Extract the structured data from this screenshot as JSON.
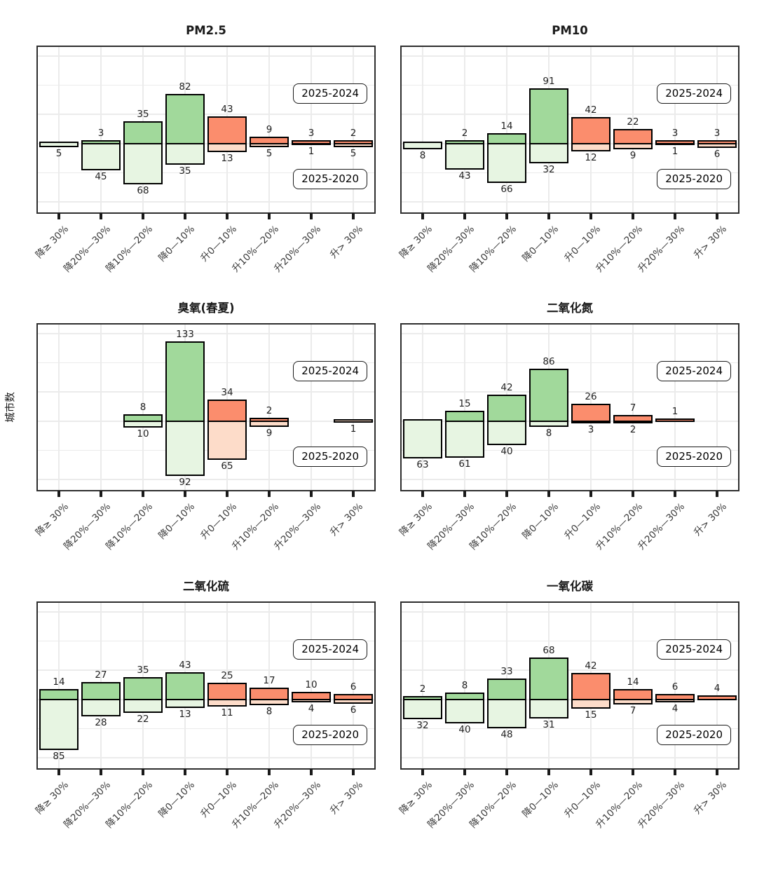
{
  "figure": {
    "ylabel": "城市数"
  },
  "chart_data": {
    "type": "bar",
    "subtype": "diverging-paired-bars",
    "layout": "2 columns x 3 rows of panels, shared category x-axis, values above zero line = first series, values below zero line = second series",
    "categories": [
      "降≥ 30%",
      "降20%—30%",
      "降10%—20%",
      "降0—10%",
      "升0—10%",
      "升10%—20%",
      "升20%—30%",
      "升> 30%"
    ],
    "series_names": [
      "2025-2024",
      "2025-2020"
    ],
    "legend_labels": [
      "2025-2024",
      "2025-2020"
    ],
    "legend_position": "right-inside",
    "ylabel": "城市数",
    "ylim": [
      -120,
      168
    ],
    "grid": true,
    "grid_step": 50,
    "panels": [
      {
        "title": "PM2.5",
        "upper": [
          0,
          3,
          35,
          82,
          43,
          9,
          3,
          2
        ],
        "lower": [
          5,
          45,
          68,
          35,
          13,
          5,
          1,
          5
        ]
      },
      {
        "title": "PM10",
        "upper": [
          0,
          2,
          14,
          91,
          42,
          22,
          3,
          3
        ],
        "lower": [
          8,
          43,
          66,
          32,
          12,
          9,
          1,
          6
        ]
      },
      {
        "title": "臭氧(春夏)",
        "upper": [
          0,
          0,
          8,
          133,
          34,
          2,
          0,
          0
        ],
        "lower": [
          0,
          0,
          10,
          92,
          65,
          9,
          0,
          1
        ]
      },
      {
        "title": "二氧化氮",
        "upper": [
          0,
          15,
          42,
          86,
          26,
          7,
          1,
          0
        ],
        "lower": [
          63,
          61,
          40,
          8,
          3,
          2,
          0,
          0
        ]
      },
      {
        "title": "二氧化硫",
        "upper": [
          14,
          27,
          35,
          43,
          25,
          17,
          10,
          6
        ],
        "lower": [
          85,
          28,
          22,
          13,
          11,
          8,
          4,
          6
        ]
      },
      {
        "title": "一氧化碳",
        "upper": [
          2,
          8,
          33,
          68,
          42,
          14,
          6,
          4
        ],
        "lower": [
          32,
          40,
          48,
          31,
          15,
          7,
          4,
          0
        ]
      }
    ],
    "colors": {
      "decrease_upper": "#a1d99b",
      "decrease_lower": "#e7f5e2",
      "increase_upper": "#fb8d6d",
      "increase_lower": "#fddcc9",
      "bar_border": "#000000",
      "grid": "#ebebeb",
      "panel_border": "#2e2e2e",
      "text": "#1f1f1f"
    },
    "notes": "First 4 categories (降 = decrease) are green; last 4 (升 = increase) are orange. Zero values have no bar and no label."
  }
}
